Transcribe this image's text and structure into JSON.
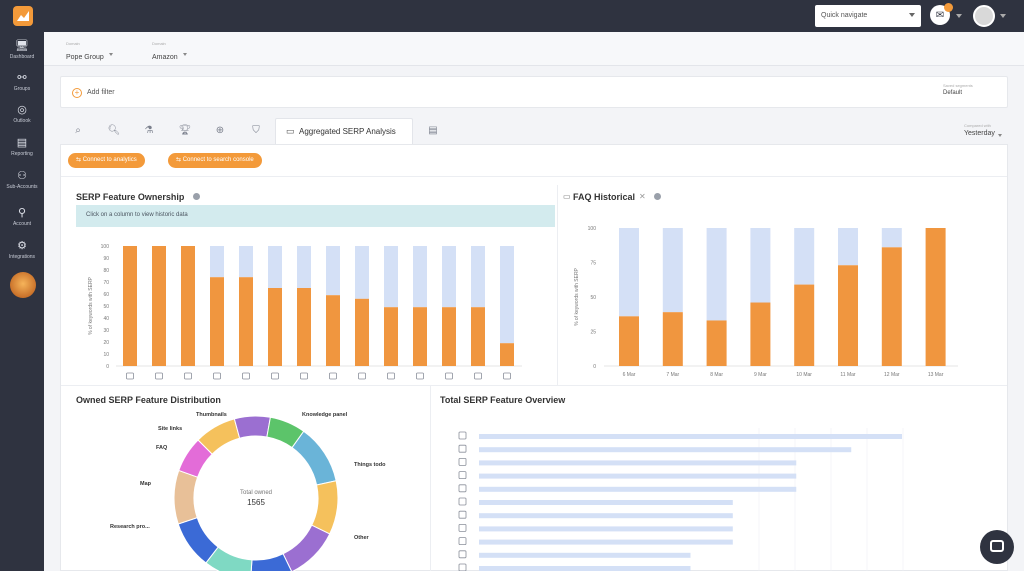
{
  "nav": {
    "items": [
      {
        "icon": "monitor-icon",
        "glyph": "🖥",
        "label": "Dashboard"
      },
      {
        "icon": "groups-icon",
        "glyph": "⚯",
        "label": "Groups"
      },
      {
        "icon": "outlook-icon",
        "glyph": "◎",
        "label": "Outlook"
      },
      {
        "icon": "reporting-icon",
        "glyph": "▤",
        "label": "Reporting"
      },
      {
        "icon": "subaccounts-icon",
        "glyph": "⚇",
        "label": "Sub-Accounts"
      },
      {
        "icon": "account-icon",
        "glyph": "⚲",
        "label": "Account"
      },
      {
        "icon": "integrations-icon",
        "glyph": "⚙",
        "label": "Integrations"
      }
    ]
  },
  "header": {
    "quick_navigate": "Quick navigate"
  },
  "crumbs": [
    {
      "small": "Domain",
      "value": "Pope Group"
    },
    {
      "small": "Domain",
      "value": "Amazon"
    }
  ],
  "filter": {
    "add_filter": "Add filter",
    "saved_small": "Saved segments",
    "saved_value": "Default"
  },
  "tabs": {
    "active_label": "Aggregated SERP Analysis",
    "compared_small": "Compared with",
    "compared_value": "Yesterday"
  },
  "actions": {
    "connect_analytics": "Connect to analytics",
    "connect_search_console": "Connect to search console"
  },
  "serp_ownership": {
    "title": "SERP Feature Ownership",
    "hint": "Click on a column to view historic data"
  },
  "faq_historical": {
    "title": "FAQ Historical"
  },
  "owned_distribution": {
    "title": "Owned SERP Feature Distribution",
    "center_label": "Total owned",
    "center_value": "1565",
    "labels": [
      "Thumbnails",
      "Knowledge panel",
      "Site links",
      "FAQ",
      "Things todo",
      "Map",
      "Other",
      "Research pro..."
    ]
  },
  "overview": {
    "title": "Total SERP Feature Overview"
  },
  "colors": {
    "orange": "#f0963f",
    "light_blue": "#d4e0f6",
    "dark": "#2f3340"
  },
  "chart_data": [
    {
      "type": "bar",
      "title": "SERP Feature Ownership",
      "ylabel": "% of keywords with SERP",
      "ylim": [
        0,
        100
      ],
      "yticks": [
        0,
        10,
        20,
        30,
        40,
        50,
        60,
        70,
        80,
        90,
        100
      ],
      "stacked": true,
      "categories": [
        "f1",
        "f2",
        "f3",
        "f4",
        "f5",
        "f6",
        "f7",
        "f8",
        "f9",
        "f10",
        "f11",
        "f12",
        "f13",
        "f14"
      ],
      "category_icons": [
        "cart-icon",
        "share-icon",
        "image-icon",
        "news-icon",
        "carousel-icon",
        "edit-icon",
        "grid-icon",
        "map-pin-icon",
        "sitelinks-icon",
        "tag-icon",
        "review-icon",
        "photo-icon",
        "faq-icon",
        "chat-icon"
      ],
      "series": [
        {
          "values": [
            100,
            100,
            100,
            74,
            74,
            65,
            65,
            59,
            56,
            49,
            49,
            49,
            49,
            19
          ]
        },
        {
          "values": [
            0,
            0,
            0,
            26,
            26,
            35,
            35,
            41,
            44,
            51,
            51,
            51,
            51,
            81
          ]
        }
      ]
    },
    {
      "type": "bar",
      "title": "FAQ Historical",
      "ylabel": "% of keywords with SERP",
      "ylim": [
        0,
        100
      ],
      "yticks": [
        0,
        25,
        50,
        75,
        100
      ],
      "stacked": true,
      "categories": [
        "6 Mar",
        "7 Mar",
        "8 Mar",
        "9 Mar",
        "10 Mar",
        "11 Mar",
        "12 Mar",
        "13 Mar"
      ],
      "series": [
        {
          "values": [
            36,
            39,
            33,
            46,
            59,
            73,
            86,
            100
          ]
        },
        {
          "values": [
            64,
            61,
            67,
            54,
            41,
            27,
            14,
            0
          ]
        }
      ]
    },
    {
      "type": "pie",
      "title": "Owned SERP Feature Distribution",
      "total": 1565,
      "slices": [
        {
          "label": "Knowledge panel",
          "value": 10,
          "color": "#6ab4d8"
        },
        {
          "label": "Things todo",
          "value": 9,
          "color": "#f5c15c"
        },
        {
          "label": "Other",
          "value": 9,
          "color": "#9b6fd1"
        },
        {
          "label": "",
          "value": 7,
          "color": "#3b6ad6"
        },
        {
          "label": "",
          "value": 8,
          "color": "#7fd9c3"
        },
        {
          "label": "",
          "value": 8,
          "color": "#3b6ad6"
        },
        {
          "label": "Research pro...",
          "value": 9,
          "color": "#e8c098"
        },
        {
          "label": "Map",
          "value": 6,
          "color": "#e36cd8"
        },
        {
          "label": "FAQ",
          "value": 7,
          "color": "#f5c15c"
        },
        {
          "label": "Site links",
          "value": 6,
          "color": "#9b6fd1"
        },
        {
          "label": "Thumbnails",
          "value": 6,
          "color": "#5cc46a"
        }
      ]
    },
    {
      "type": "bar",
      "orientation": "horizontal",
      "title": "Total SERP Feature Overview",
      "xlim": [
        0,
        100
      ],
      "category_icons": [
        "building-icon",
        "cart-icon",
        "eye-icon",
        "eye-icon",
        "grid-icon",
        "map-pin-icon",
        "eye-icon",
        "chat-icon",
        "chat-icon",
        "map-icon",
        "link-icon",
        "review-icon"
      ],
      "values": [
        100,
        88,
        75,
        75,
        75,
        60,
        60,
        60,
        60,
        50,
        50,
        50
      ]
    }
  ]
}
